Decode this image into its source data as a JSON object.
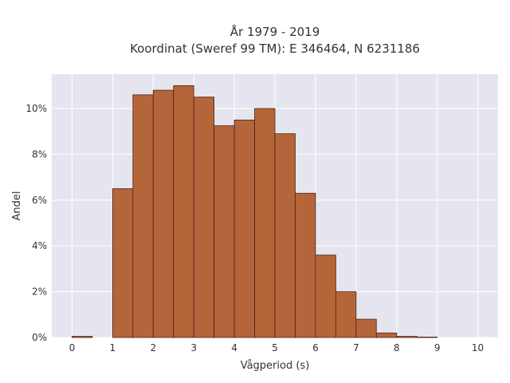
{
  "chart_data": {
    "type": "bar",
    "title": "År 1979 - 2019",
    "subtitle": "Koordinat (Sweref 99 TM): E 346464, N 6231186",
    "xlabel": "Vågperiod (s)",
    "ylabel": "Andel",
    "xlim": [
      -0.5,
      10.5
    ],
    "ylim": [
      0,
      11.5
    ],
    "x_ticks": [
      "0",
      "1",
      "2",
      "3",
      "4",
      "5",
      "6",
      "7",
      "8",
      "9",
      "10"
    ],
    "y_ticks": [
      "0%",
      "2%",
      "4%",
      "6%",
      "8%",
      "10%"
    ],
    "bin_width": 0.5,
    "bins_start": [
      0,
      0.5,
      1,
      1.5,
      2,
      2.5,
      3,
      3.5,
      4,
      4.5,
      5,
      5.5,
      6,
      6.5,
      7,
      7.5,
      8,
      8.5
    ],
    "values": [
      0.05,
      0,
      6.5,
      10.6,
      10.8,
      11.0,
      10.5,
      9.25,
      9.5,
      10.0,
      8.9,
      6.3,
      3.6,
      2.0,
      0.8,
      0.2,
      0.05,
      0.02
    ],
    "grid": true,
    "colors": {
      "bar_fill": "#b5653a",
      "bar_edge": "#4a2414",
      "plot_background": "#e5e5ef",
      "grid": "#ffffff"
    }
  }
}
